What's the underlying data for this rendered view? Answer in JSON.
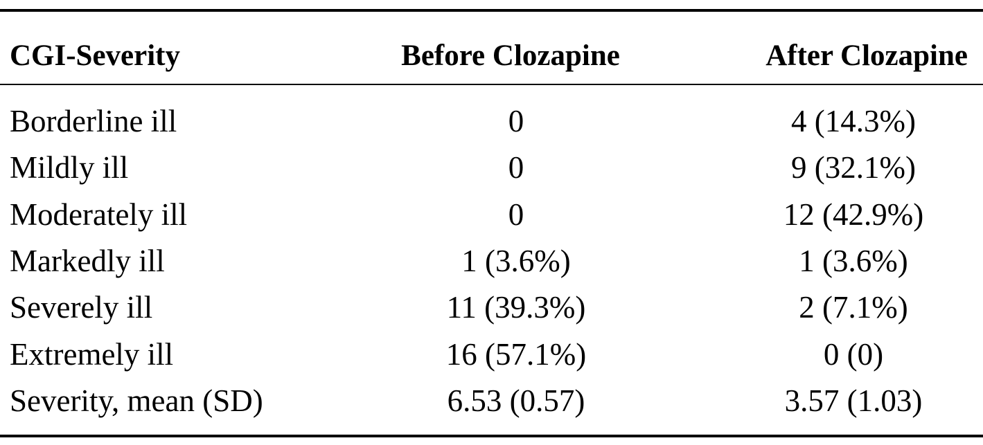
{
  "table": {
    "header": [
      "CGI-Severity",
      "Before Clozapine",
      "After Clozapine"
    ],
    "rows": [
      [
        "Borderline ill",
        "0",
        "4 (14.3%)"
      ],
      [
        "Mildly ill",
        "0",
        "9 (32.1%)"
      ],
      [
        "Moderately ill",
        "0",
        "12 (42.9%)"
      ],
      [
        "Markedly ill",
        "1 (3.6%)",
        "1 (3.6%)"
      ],
      [
        "Severely ill",
        "11 (39.3%)",
        "2 (7.1%)"
      ],
      [
        "Extremely ill",
        "16 (57.1%)",
        "0 (0)"
      ],
      [
        "Severity, mean (SD)",
        "6.53 (0.57)",
        "3.57 (1.03)"
      ]
    ]
  }
}
